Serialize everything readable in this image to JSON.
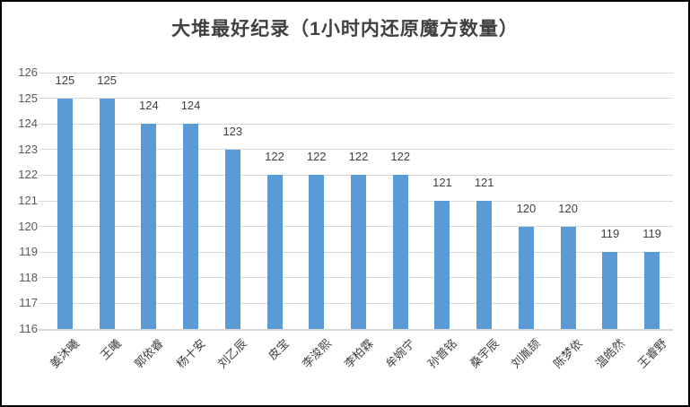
{
  "chart_data": {
    "type": "bar",
    "title": "大堆最好纪录（1小时内还原魔方数量）",
    "categories": [
      "姜沐曦",
      "王曦",
      "郭依睿",
      "杨十安",
      "刘乙辰",
      "皮宝",
      "李浚熙",
      "李柏霖",
      "牟婉宁",
      "孙普铭",
      "桑宇辰",
      "刘胤颉",
      "陈梦依",
      "温皓然",
      "王睿野"
    ],
    "values": [
      125,
      125,
      124,
      124,
      123,
      122,
      122,
      122,
      122,
      121,
      121,
      120,
      120,
      119,
      119
    ],
    "xlabel": "",
    "ylabel": "",
    "ylim": [
      116,
      126
    ],
    "ytick_step": 1,
    "grid": true,
    "legend": "none",
    "data_labels": true,
    "bar_color": "#5b9bd5",
    "gridline_color": "#d9d9d9",
    "title_color": "#404040",
    "axis_text_color": "#595959",
    "data_label_color": "#404040"
  }
}
